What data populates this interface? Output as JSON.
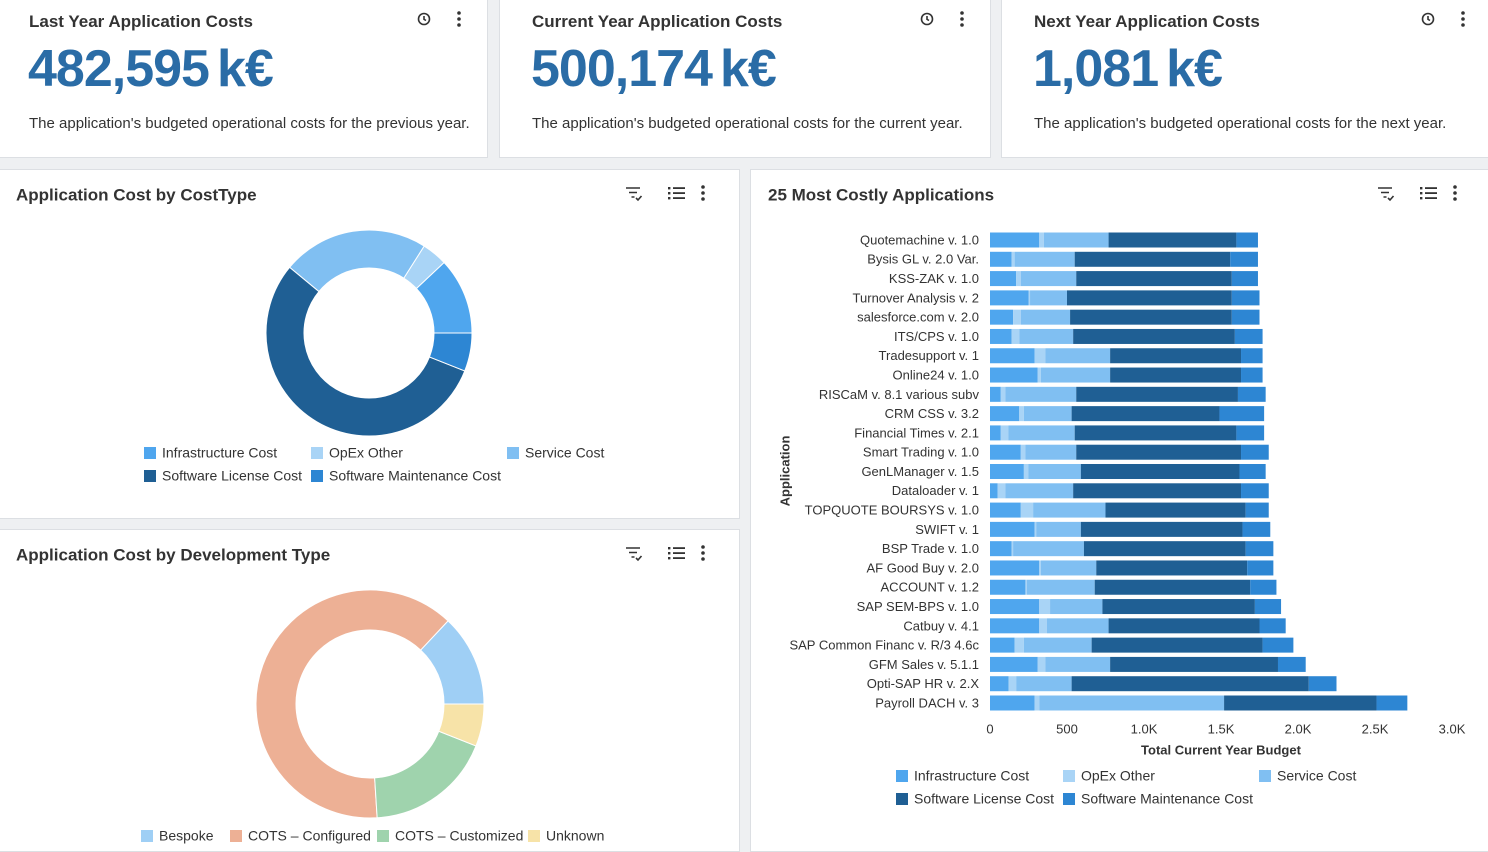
{
  "kpis": [
    {
      "title": "Last Year Application Costs",
      "value": "482,595",
      "unit": "k€",
      "description": "The application's budgeted operational costs for the previous year."
    },
    {
      "title": "Current Year Application Costs",
      "value": "500,174",
      "unit": "k€",
      "description": "The application's budgeted operational costs for the current year."
    },
    {
      "title": "Next Year Application Costs",
      "value": "1,081",
      "unit": "k€",
      "description": "The application's budgeted operational costs for the next year."
    }
  ],
  "chart_data": [
    {
      "type": "donut",
      "title": "Application Cost by CostType",
      "categories": [
        "Infrastructure Cost",
        "OpEx Other",
        "Service Cost",
        "Software License Cost",
        "Software Maintenance Cost"
      ],
      "values": [
        12,
        4,
        23,
        55,
        6
      ],
      "colors": [
        "#4fa6ee",
        "#a9d4f6",
        "#80bff2",
        "#1f5f94",
        "#2d86d3"
      ]
    },
    {
      "type": "donut",
      "title": "Application Cost by Development Type",
      "categories": [
        "Bespoke",
        "COTS – Configured",
        "COTS – Customized",
        "Unknown"
      ],
      "values": [
        13,
        63,
        18,
        6
      ],
      "colors": [
        "#9fcff5",
        "#edb095",
        "#9fd3ad",
        "#f7e3a8"
      ]
    },
    {
      "type": "stacked-barh",
      "title": "25 Most Costly Applications",
      "x_label": "Total Current Year Budget",
      "y_label": "Application",
      "categories": [
        "Quotemachine v. 1.0",
        "Bysis GL v. 2.0 Var.",
        "KSS-ZAK v. 1.0",
        "Turnover Analysis v. 2",
        "salesforce.com v. 2.0",
        "ITS/CPS v. 1.0",
        "Tradesupport v. 1",
        "Online24 v. 1.0",
        "RISCaM v. 8.1 various subv",
        "CRM CSS v. 3.2",
        "Financial Times v. 2.1",
        "Smart Trading v. 1.0",
        "GenLManager v. 1.5",
        "Dataloader v. 1",
        "TOPQUOTE BOURSYS v. 1.0",
        "SWIFT v. 1",
        "BSP Trade v. 1.0",
        "AF Good Buy v. 2.0",
        "ACCOUNT v. 1.2",
        "SAP SEM-BPS v. 1.0",
        "Catbuy v. 4.1",
        "SAP Common Financ v. R/3 4.6c",
        "GFM Sales v. 5.1.1",
        "Opti-SAP HR v. 2.X",
        "Payroll DACH v. 3"
      ],
      "series": [
        {
          "name": "Infrastructure Cost",
          "color": "#4fa6ee",
          "values": [
            320,
            140,
            170,
            250,
            150,
            140,
            290,
            310,
            70,
            190,
            70,
            200,
            220,
            50,
            200,
            290,
            140,
            320,
            230,
            320,
            320,
            160,
            310,
            120,
            290
          ]
        },
        {
          "name": "OpEx Other",
          "color": "#a9d4f6",
          "values": [
            30,
            20,
            30,
            10,
            50,
            50,
            70,
            20,
            30,
            30,
            50,
            30,
            30,
            50,
            80,
            10,
            10,
            10,
            10,
            70,
            50,
            60,
            50,
            50,
            30
          ]
        },
        {
          "name": "Service Cost",
          "color": "#80bff2",
          "values": [
            420,
            390,
            360,
            240,
            320,
            350,
            420,
            450,
            460,
            310,
            430,
            330,
            340,
            440,
            470,
            290,
            460,
            360,
            440,
            340,
            400,
            440,
            420,
            360,
            1200
          ]
        },
        {
          "name": "Software License Cost",
          "color": "#1f5f94",
          "values": [
            830,
            1010,
            1010,
            1070,
            1050,
            1050,
            850,
            850,
            1050,
            960,
            1050,
            1070,
            1030,
            1090,
            910,
            1050,
            1050,
            980,
            1010,
            990,
            980,
            1110,
            1090,
            1540,
            990
          ]
        },
        {
          "name": "Software Maintenance Cost",
          "color": "#2d86d3",
          "values": [
            140,
            180,
            170,
            180,
            180,
            180,
            140,
            140,
            180,
            290,
            180,
            180,
            170,
            180,
            150,
            180,
            180,
            170,
            170,
            170,
            170,
            200,
            180,
            180,
            200
          ]
        }
      ],
      "xlim": [
        0,
        3000
      ],
      "xticks": [
        0,
        500,
        {
          "value": 1000,
          "label": "1.0K"
        },
        {
          "value": 1500,
          "label": "1.5K"
        },
        {
          "value": 2000,
          "label": "2.0K"
        },
        {
          "value": 2500,
          "label": "2.5K"
        },
        {
          "value": 3000,
          "label": "3.0K"
        }
      ]
    }
  ]
}
